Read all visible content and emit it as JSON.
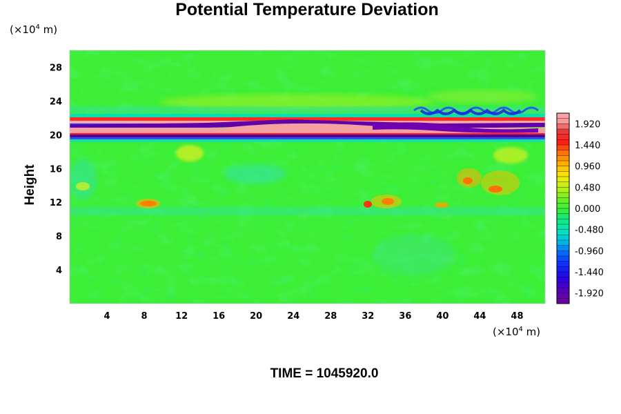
{
  "chart_data": {
    "type": "heatmap",
    "title": "Potential Temperature Deviation",
    "ylabel": "Height",
    "y_unit": {
      "prefix": "(×10",
      "exp": "4",
      "suffix": " m)"
    },
    "x_unit": {
      "prefix": "(×10",
      "exp": "4",
      "suffix": " m)"
    },
    "xlim": [
      0,
      51
    ],
    "ylim": [
      0,
      30
    ],
    "x_ticks": [
      "4",
      "8",
      "12",
      "16",
      "20",
      "24",
      "28",
      "32",
      "36",
      "40",
      "44",
      "48"
    ],
    "y_ticks": [
      "4",
      "8",
      "12",
      "16",
      "20",
      "24",
      "28"
    ],
    "colorbar": {
      "min": -2.16,
      "max": 2.16,
      "labels": [
        "1.920",
        "1.440",
        "0.960",
        "0.480",
        "0.000",
        "-0.480",
        "-0.960",
        "-1.440",
        "-1.920"
      ]
    },
    "field_description_bands": [
      {
        "y_range": [
          19.5,
          22.5
        ],
        "feature": "strong alternating positive/negative layer",
        "x_range": [
          0,
          51
        ]
      },
      {
        "y_range": [
          10.5,
          18
        ],
        "feature": "scattered positive patches",
        "x_range": [
          30,
          51
        ]
      }
    ],
    "colors": {
      "background_field": "#33ee33",
      "positive_high": "#f5a0a0",
      "positive_mid": "#ff2020",
      "negative_high": "#7000a0",
      "negative_mid": "#2020ff",
      "near_zero_neg": "#00e0c0"
    }
  },
  "footer": {
    "time_label": "TIME = 1045920.0"
  }
}
